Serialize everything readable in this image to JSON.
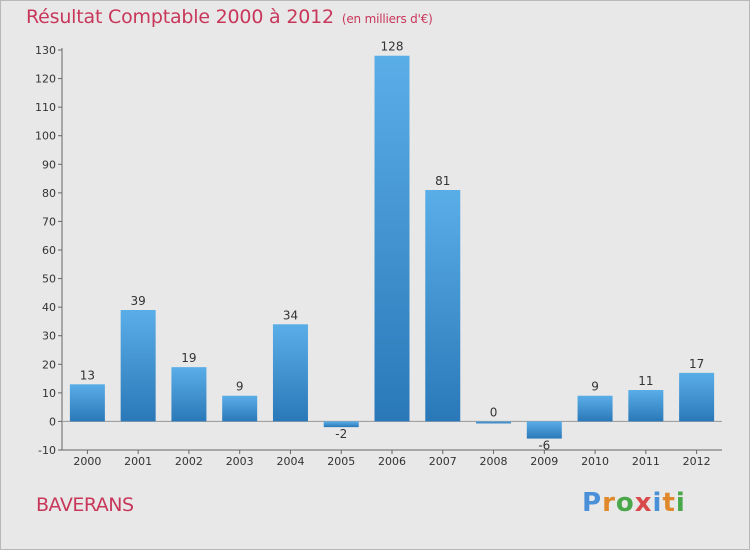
{
  "chart_data": {
    "type": "bar",
    "title": "Résultat Comptable 2000 à 2012",
    "subtitle": "(en milliers d'€)",
    "categories": [
      "2000",
      "2001",
      "2002",
      "2003",
      "2004",
      "2005",
      "2006",
      "2007",
      "2008",
      "2009",
      "2010",
      "2011",
      "2012"
    ],
    "values": [
      13,
      39,
      19,
      9,
      34,
      -2,
      128,
      81,
      0,
      -6,
      9,
      11,
      17
    ],
    "value_labels": [
      "13",
      "39",
      "19",
      "9",
      "34",
      "-2",
      "128",
      "81",
      "0",
      "-6",
      "9",
      "11",
      "17"
    ],
    "yticks": [
      "-10",
      "0",
      "10",
      "20",
      "30",
      "40",
      "50",
      "60",
      "70",
      "80",
      "90",
      "100",
      "110",
      "120",
      "130"
    ],
    "ylim": [
      -10,
      130
    ],
    "grid": false,
    "xlabel": "",
    "ylabel": ""
  },
  "commune": "BAVERANS",
  "logo": {
    "letters": [
      "P",
      "r",
      "o",
      "x",
      "i",
      "t",
      "i"
    ],
    "colors": [
      "#4a90d9",
      "#e0892b",
      "#4aa84a",
      "#d94a4a",
      "#4a90d9",
      "#e0892b",
      "#4aa84a"
    ]
  },
  "colors": {
    "title": "#c8375a",
    "bar_top": "#5aaee8",
    "bar_bottom": "#2a78b8",
    "background": "#e8e8e8"
  }
}
